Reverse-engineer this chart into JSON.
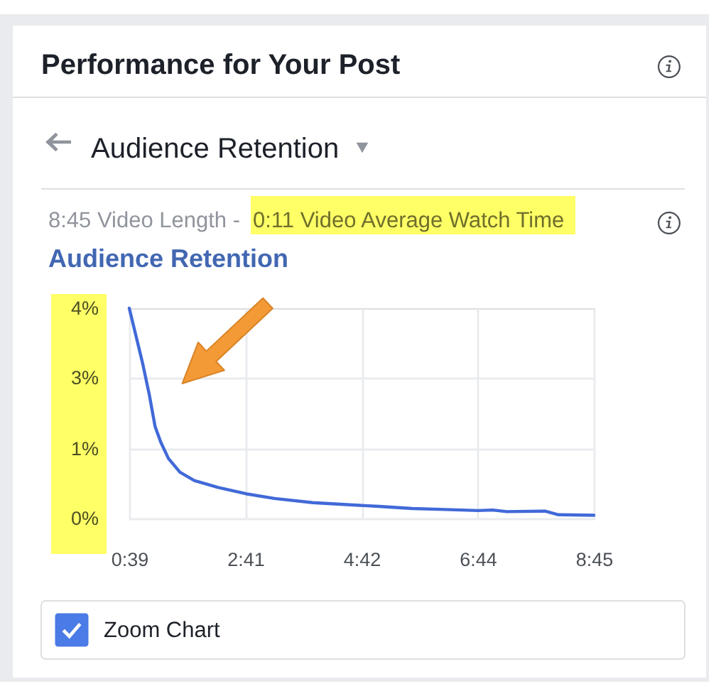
{
  "chart_data": {
    "type": "line",
    "title": "Performance for Your Post",
    "subtitle": "Audience Retention",
    "annotations": [
      "8:45 Video Length -",
      "0:11 Video Average Watch Time",
      "Audience Retention",
      "Zoom Chart"
    ],
    "x": [
      39,
      53,
      60,
      66,
      72,
      80,
      92,
      107,
      132,
      161,
      191,
      231,
      260,
      300,
      335,
      369,
      404,
      419,
      434,
      474,
      488,
      525
    ],
    "series": [
      {
        "color": "#4169d8",
        "values": [
          4.0,
          2.95,
          2.35,
          1.75,
          1.45,
          1.14,
          0.88,
          0.72,
          0.59,
          0.47,
          0.38,
          0.3,
          0.27,
          0.23,
          0.19,
          0.17,
          0.15,
          0.16,
          0.13,
          0.14,
          0.07,
          0.06
        ]
      }
    ],
    "xlim": [
      39,
      525
    ],
    "xticks": [
      {
        "value": 39,
        "label": "0:39"
      },
      {
        "value": 160.5,
        "label": "2:41"
      },
      {
        "value": 282,
        "label": "4:42"
      },
      {
        "value": 403.5,
        "label": "6:44"
      },
      {
        "value": 525,
        "label": "8:45"
      }
    ],
    "ylim": [
      0,
      4
    ],
    "yticks": [
      {
        "value": 0,
        "label": "0%"
      },
      {
        "value": 1.33,
        "label": "1%"
      },
      {
        "value": 2.67,
        "label": "3%"
      },
      {
        "value": 4,
        "label": "4%"
      }
    ],
    "grid": true,
    "line_style": "solid"
  }
}
